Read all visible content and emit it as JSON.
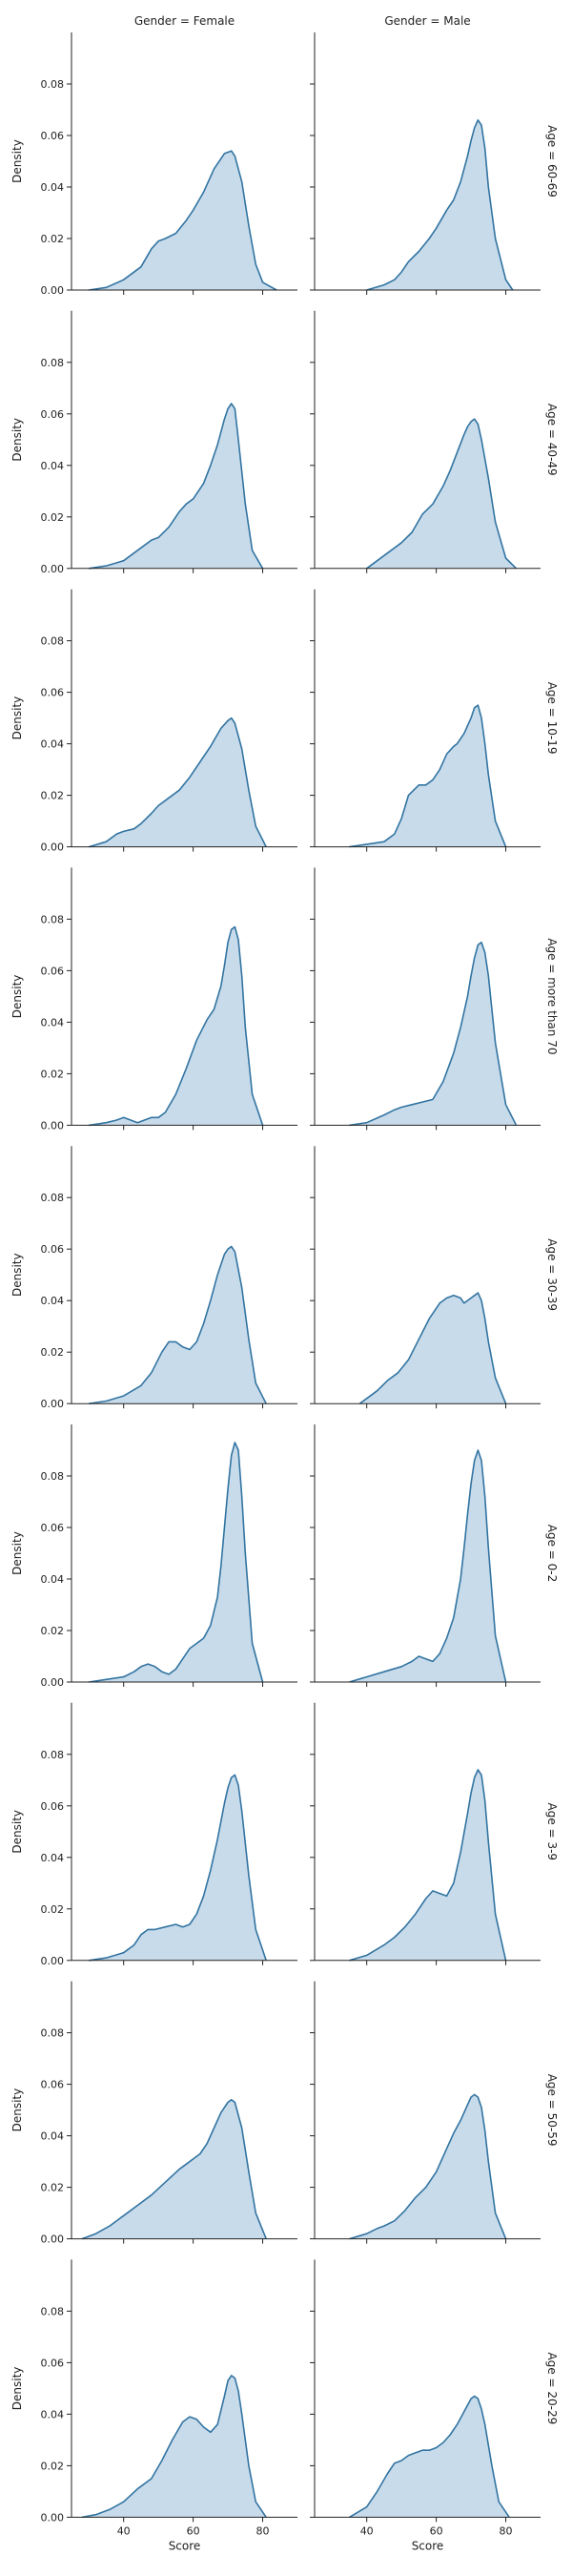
{
  "chart_data": {
    "type": "area",
    "facet_grid": true,
    "columns": [
      "Gender = Female",
      "Gender = Male"
    ],
    "rows": [
      "Age = 60-69",
      "Age = 40-49",
      "Age = 10-19",
      "Age = more than 70",
      "Age = 30-39",
      "Age = 0-2",
      "Age = 3-9",
      "Age = 50-59",
      "Age = 20-29"
    ],
    "xlabel": "Score",
    "ylabel": "Density",
    "xlim": [
      25,
      90
    ],
    "ylim": [
      0,
      0.1
    ],
    "xticks": [
      40,
      60,
      80
    ],
    "xtick_labels": [
      "40",
      "60",
      "80"
    ],
    "yticks": [
      0,
      0.02,
      0.04,
      0.06,
      0.08
    ],
    "ytick_labels": [
      "0.00",
      "0.02",
      "0.04",
      "0.06",
      "0.08"
    ],
    "line_color": "#3274a1",
    "fill_color": "#c5d9ea",
    "grid": false,
    "panels": [
      [
        {
          "x": [
            30,
            35,
            40,
            45,
            48,
            50,
            52,
            55,
            58,
            60,
            63,
            66,
            69,
            71,
            72,
            74,
            76,
            78,
            80,
            84
          ],
          "y": [
            0,
            0.001,
            0.004,
            0.009,
            0.016,
            0.019,
            0.02,
            0.022,
            0.027,
            0.031,
            0.038,
            0.047,
            0.053,
            0.054,
            0.052,
            0.042,
            0.025,
            0.01,
            0.003,
            0
          ]
        },
        {
          "x": [
            40,
            45,
            48,
            50,
            52,
            55,
            58,
            60,
            63,
            65,
            67,
            69,
            70,
            71,
            72,
            73,
            74,
            75,
            77,
            80,
            82
          ],
          "y": [
            0,
            0.002,
            0.004,
            0.007,
            0.011,
            0.015,
            0.02,
            0.024,
            0.031,
            0.035,
            0.042,
            0.052,
            0.058,
            0.063,
            0.066,
            0.064,
            0.055,
            0.04,
            0.02,
            0.004,
            0
          ]
        }
      ],
      [
        {
          "x": [
            30,
            35,
            40,
            45,
            48,
            50,
            53,
            56,
            58,
            60,
            63,
            65,
            67,
            69,
            70,
            71,
            72,
            73,
            75,
            77,
            80
          ],
          "y": [
            0,
            0.001,
            0.003,
            0.008,
            0.011,
            0.012,
            0.016,
            0.022,
            0.025,
            0.027,
            0.033,
            0.04,
            0.048,
            0.058,
            0.062,
            0.064,
            0.062,
            0.05,
            0.025,
            0.007,
            0
          ]
        },
        {
          "x": [
            40,
            45,
            50,
            53,
            56,
            59,
            62,
            64,
            66,
            68,
            69,
            70,
            71,
            72,
            73,
            75,
            77,
            80,
            83
          ],
          "y": [
            0,
            0.005,
            0.01,
            0.014,
            0.021,
            0.025,
            0.032,
            0.038,
            0.045,
            0.052,
            0.055,
            0.057,
            0.058,
            0.056,
            0.05,
            0.035,
            0.018,
            0.004,
            0
          ]
        }
      ],
      [
        {
          "x": [
            30,
            35,
            38,
            40,
            43,
            45,
            48,
            50,
            53,
            56,
            59,
            62,
            65,
            68,
            70,
            71,
            72,
            74,
            76,
            78,
            81
          ],
          "y": [
            0,
            0.002,
            0.005,
            0.006,
            0.007,
            0.009,
            0.013,
            0.016,
            0.019,
            0.022,
            0.027,
            0.033,
            0.039,
            0.046,
            0.049,
            0.05,
            0.048,
            0.038,
            0.022,
            0.008,
            0
          ]
        },
        {
          "x": [
            35,
            40,
            45,
            48,
            50,
            52,
            55,
            57,
            59,
            61,
            63,
            65,
            66,
            68,
            70,
            71,
            72,
            73,
            74,
            75,
            77,
            80
          ],
          "y": [
            0,
            0.001,
            0.002,
            0.005,
            0.011,
            0.02,
            0.024,
            0.024,
            0.026,
            0.03,
            0.036,
            0.039,
            0.04,
            0.044,
            0.05,
            0.054,
            0.055,
            0.05,
            0.04,
            0.028,
            0.01,
            0
          ]
        }
      ],
      [
        {
          "x": [
            30,
            35,
            38,
            40,
            42,
            44,
            46,
            48,
            50,
            52,
            55,
            58,
            61,
            64,
            66,
            68,
            69,
            70,
            71,
            72,
            73,
            74,
            75,
            77,
            80
          ],
          "y": [
            0,
            0.001,
            0.002,
            0.003,
            0.002,
            0.001,
            0.002,
            0.003,
            0.003,
            0.005,
            0.012,
            0.022,
            0.033,
            0.041,
            0.045,
            0.054,
            0.062,
            0.071,
            0.076,
            0.077,
            0.072,
            0.058,
            0.038,
            0.012,
            0
          ]
        },
        {
          "x": [
            35,
            40,
            45,
            48,
            50,
            53,
            56,
            59,
            62,
            65,
            67,
            69,
            70,
            71,
            72,
            73,
            74,
            75,
            77,
            80,
            83
          ],
          "y": [
            0,
            0.001,
            0.004,
            0.006,
            0.007,
            0.008,
            0.009,
            0.01,
            0.017,
            0.028,
            0.038,
            0.05,
            0.058,
            0.065,
            0.07,
            0.071,
            0.067,
            0.058,
            0.032,
            0.008,
            0
          ]
        }
      ],
      [
        {
          "x": [
            30,
            35,
            40,
            45,
            48,
            51,
            53,
            55,
            57,
            59,
            61,
            63,
            65,
            67,
            69,
            70,
            71,
            72,
            74,
            76,
            78,
            81
          ],
          "y": [
            0,
            0.001,
            0.003,
            0.007,
            0.012,
            0.02,
            0.024,
            0.024,
            0.022,
            0.021,
            0.024,
            0.031,
            0.04,
            0.05,
            0.058,
            0.06,
            0.061,
            0.059,
            0.045,
            0.025,
            0.008,
            0
          ]
        },
        {
          "x": [
            38,
            40,
            43,
            46,
            49,
            52,
            55,
            58,
            61,
            63,
            65,
            67,
            68,
            70,
            71,
            72,
            73,
            74,
            75,
            77,
            80
          ],
          "y": [
            0,
            0.002,
            0.005,
            0.009,
            0.012,
            0.017,
            0.025,
            0.033,
            0.039,
            0.041,
            0.042,
            0.041,
            0.039,
            0.041,
            0.042,
            0.043,
            0.04,
            0.033,
            0.024,
            0.01,
            0
          ]
        }
      ],
      [
        {
          "x": [
            30,
            35,
            40,
            43,
            45,
            47,
            49,
            51,
            53,
            55,
            57,
            59,
            61,
            63,
            65,
            67,
            68,
            69,
            70,
            71,
            72,
            73,
            74,
            75,
            77,
            80
          ],
          "y": [
            0,
            0.001,
            0.002,
            0.004,
            0.006,
            0.007,
            0.006,
            0.004,
            0.003,
            0.005,
            0.009,
            0.013,
            0.015,
            0.017,
            0.022,
            0.033,
            0.045,
            0.06,
            0.075,
            0.088,
            0.093,
            0.09,
            0.072,
            0.05,
            0.015,
            0
          ]
        },
        {
          "x": [
            35,
            40,
            45,
            50,
            53,
            55,
            57,
            59,
            61,
            63,
            65,
            67,
            68,
            69,
            70,
            71,
            72,
            73,
            74,
            75,
            77,
            80
          ],
          "y": [
            0,
            0.002,
            0.004,
            0.006,
            0.008,
            0.01,
            0.009,
            0.008,
            0.011,
            0.017,
            0.025,
            0.04,
            0.052,
            0.065,
            0.077,
            0.086,
            0.09,
            0.086,
            0.072,
            0.052,
            0.018,
            0
          ]
        }
      ],
      [
        {
          "x": [
            30,
            35,
            40,
            43,
            45,
            47,
            49,
            52,
            55,
            57,
            59,
            61,
            63,
            65,
            67,
            69,
            70,
            71,
            72,
            73,
            74,
            76,
            78,
            81
          ],
          "y": [
            0,
            0.001,
            0.003,
            0.006,
            0.01,
            0.012,
            0.012,
            0.013,
            0.014,
            0.013,
            0.014,
            0.018,
            0.025,
            0.035,
            0.047,
            0.061,
            0.067,
            0.071,
            0.072,
            0.068,
            0.058,
            0.033,
            0.012,
            0
          ]
        },
        {
          "x": [
            35,
            40,
            45,
            48,
            51,
            54,
            57,
            59,
            61,
            63,
            65,
            67,
            69,
            70,
            71,
            72,
            73,
            74,
            75,
            77,
            80
          ],
          "y": [
            0,
            0.002,
            0.006,
            0.009,
            0.013,
            0.018,
            0.024,
            0.027,
            0.026,
            0.025,
            0.03,
            0.042,
            0.057,
            0.065,
            0.071,
            0.074,
            0.072,
            0.062,
            0.046,
            0.018,
            0
          ]
        }
      ],
      [
        {
          "x": [
            28,
            32,
            36,
            40,
            44,
            48,
            52,
            56,
            58,
            60,
            62,
            64,
            66,
            68,
            70,
            71,
            72,
            74,
            76,
            78,
            81
          ],
          "y": [
            0,
            0.002,
            0.005,
            0.009,
            0.013,
            0.017,
            0.022,
            0.027,
            0.029,
            0.031,
            0.033,
            0.037,
            0.043,
            0.049,
            0.053,
            0.054,
            0.053,
            0.043,
            0.026,
            0.01,
            0
          ]
        },
        {
          "x": [
            35,
            40,
            43,
            45,
            48,
            51,
            54,
            57,
            60,
            63,
            65,
            67,
            69,
            70,
            71,
            72,
            73,
            74,
            75,
            77,
            80
          ],
          "y": [
            0,
            0.002,
            0.004,
            0.005,
            0.007,
            0.011,
            0.016,
            0.02,
            0.026,
            0.035,
            0.041,
            0.046,
            0.052,
            0.055,
            0.056,
            0.055,
            0.051,
            0.042,
            0.03,
            0.01,
            0
          ]
        }
      ],
      [
        {
          "x": [
            28,
            32,
            36,
            40,
            44,
            48,
            51,
            54,
            57,
            59,
            61,
            63,
            65,
            67,
            69,
            70,
            71,
            72,
            73,
            74,
            76,
            78,
            81
          ],
          "y": [
            0,
            0.001,
            0.003,
            0.006,
            0.011,
            0.015,
            0.022,
            0.03,
            0.037,
            0.039,
            0.038,
            0.035,
            0.033,
            0.036,
            0.047,
            0.053,
            0.055,
            0.054,
            0.049,
            0.04,
            0.02,
            0.006,
            0
          ]
        },
        {
          "x": [
            35,
            40,
            43,
            46,
            48,
            50,
            52,
            54,
            56,
            58,
            60,
            62,
            64,
            66,
            68,
            70,
            71,
            72,
            73,
            74,
            76,
            78,
            81
          ],
          "y": [
            0,
            0.004,
            0.01,
            0.017,
            0.021,
            0.022,
            0.024,
            0.025,
            0.026,
            0.026,
            0.027,
            0.029,
            0.032,
            0.036,
            0.041,
            0.046,
            0.047,
            0.046,
            0.042,
            0.036,
            0.02,
            0.006,
            0
          ]
        }
      ]
    ]
  }
}
